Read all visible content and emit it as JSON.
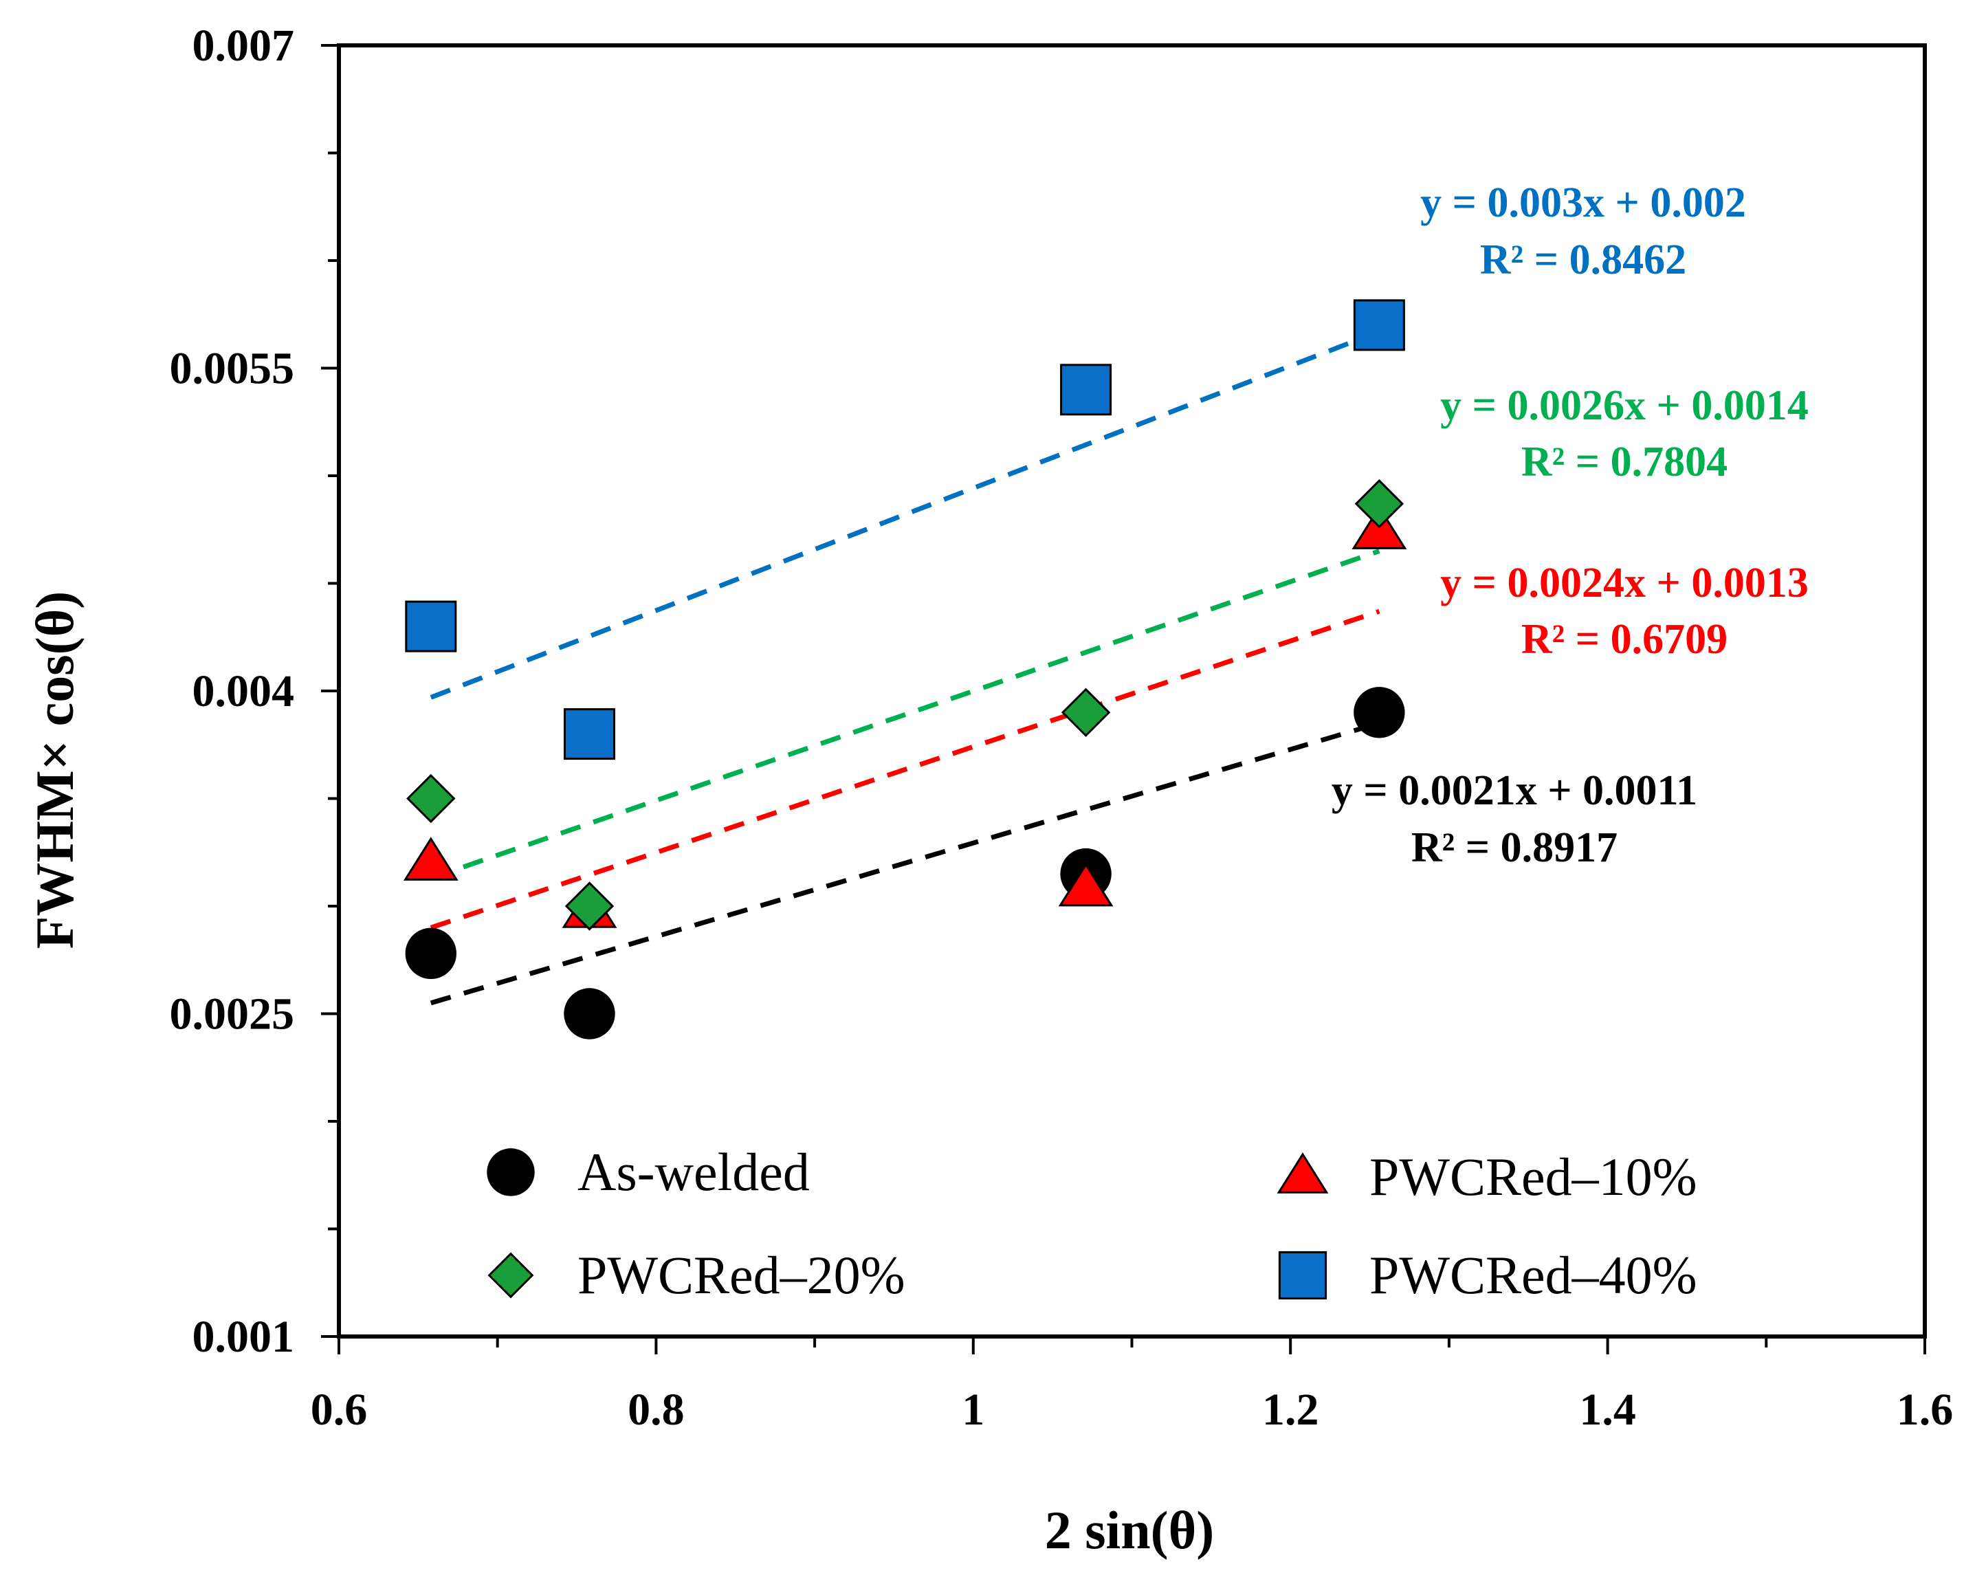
{
  "chart_data": {
    "type": "scatter",
    "xlabel": "2 sin(θ)",
    "ylabel": "FWHM× cos(θ)",
    "xlim": [
      0.6,
      1.6
    ],
    "ylim": [
      0.001,
      0.007
    ],
    "x_ticks": [
      0.6,
      0.8,
      1.0,
      1.2,
      1.4,
      1.6
    ],
    "x_tick_labels": [
      "0.6",
      "0.8",
      "1",
      "1.2",
      "1.4",
      "1.6"
    ],
    "y_ticks": [
      0.001,
      0.0025,
      0.004,
      0.0055,
      0.007
    ],
    "y_tick_labels": [
      "0.001",
      "0.0025",
      "0.004",
      "0.0055",
      "0.007"
    ],
    "grid": false,
    "legend_position": "bottom",
    "series": [
      {
        "name": "As-welded",
        "marker": "circle",
        "color": "#000000",
        "x": [
          0.658,
          0.758,
          1.071,
          1.256
        ],
        "y": [
          0.00278,
          0.0025,
          0.00315,
          0.0039
        ],
        "trendline": {
          "x_range": [
            0.658,
            1.256
          ],
          "y_start": 0.00255,
          "y_end": 0.00385,
          "equation": "y = 0.0021x + 0.0011",
          "r2": "R² = 0.8917"
        }
      },
      {
        "name": "PWCRed–10%",
        "marker": "triangle",
        "color": "#ff0000",
        "x": [
          0.658,
          0.758,
          1.071,
          1.256
        ],
        "y": [
          0.0032,
          0.00298,
          0.00308,
          0.00474
        ],
        "trendline": {
          "x_range": [
            0.658,
            1.256
          ],
          "y_start": 0.0029,
          "y_end": 0.00437,
          "equation": "y = 0.0024x + 0.0013",
          "r2": "R² = 0.6709"
        }
      },
      {
        "name": "PWCRed–20%",
        "marker": "diamond",
        "color": "#1a9e3a",
        "x": [
          0.658,
          0.758,
          1.071,
          1.256
        ],
        "y": [
          0.0035,
          0.003,
          0.0039,
          0.00487
        ],
        "trendline": {
          "x_range": [
            0.658,
            1.256
          ],
          "y_start": 0.00313,
          "y_end": 0.00465,
          "equation": "y = 0.0026x + 0.0014",
          "r2": "R² = 0.7804"
        }
      },
      {
        "name": "PWCRed–40%",
        "marker": "square",
        "color": "#0a6fc8",
        "x": [
          0.658,
          0.758,
          1.071,
          1.256
        ],
        "y": [
          0.0043,
          0.0038,
          0.0054,
          0.0057
        ],
        "trendline": {
          "x_range": [
            0.658,
            1.256
          ],
          "y_start": 0.00397,
          "y_end": 0.00567,
          "equation": "y = 0.003x + 0.002",
          "r2": "R² = 0.8462"
        }
      }
    ],
    "colors": {
      "as_welded": "#000000",
      "pwcred_10": "#ff0000",
      "pwcred_20": "#00b050",
      "pwcred_40": "#0070c0",
      "marker_20": "#1a9e3a",
      "marker_40": "#0a6fc8"
    }
  }
}
